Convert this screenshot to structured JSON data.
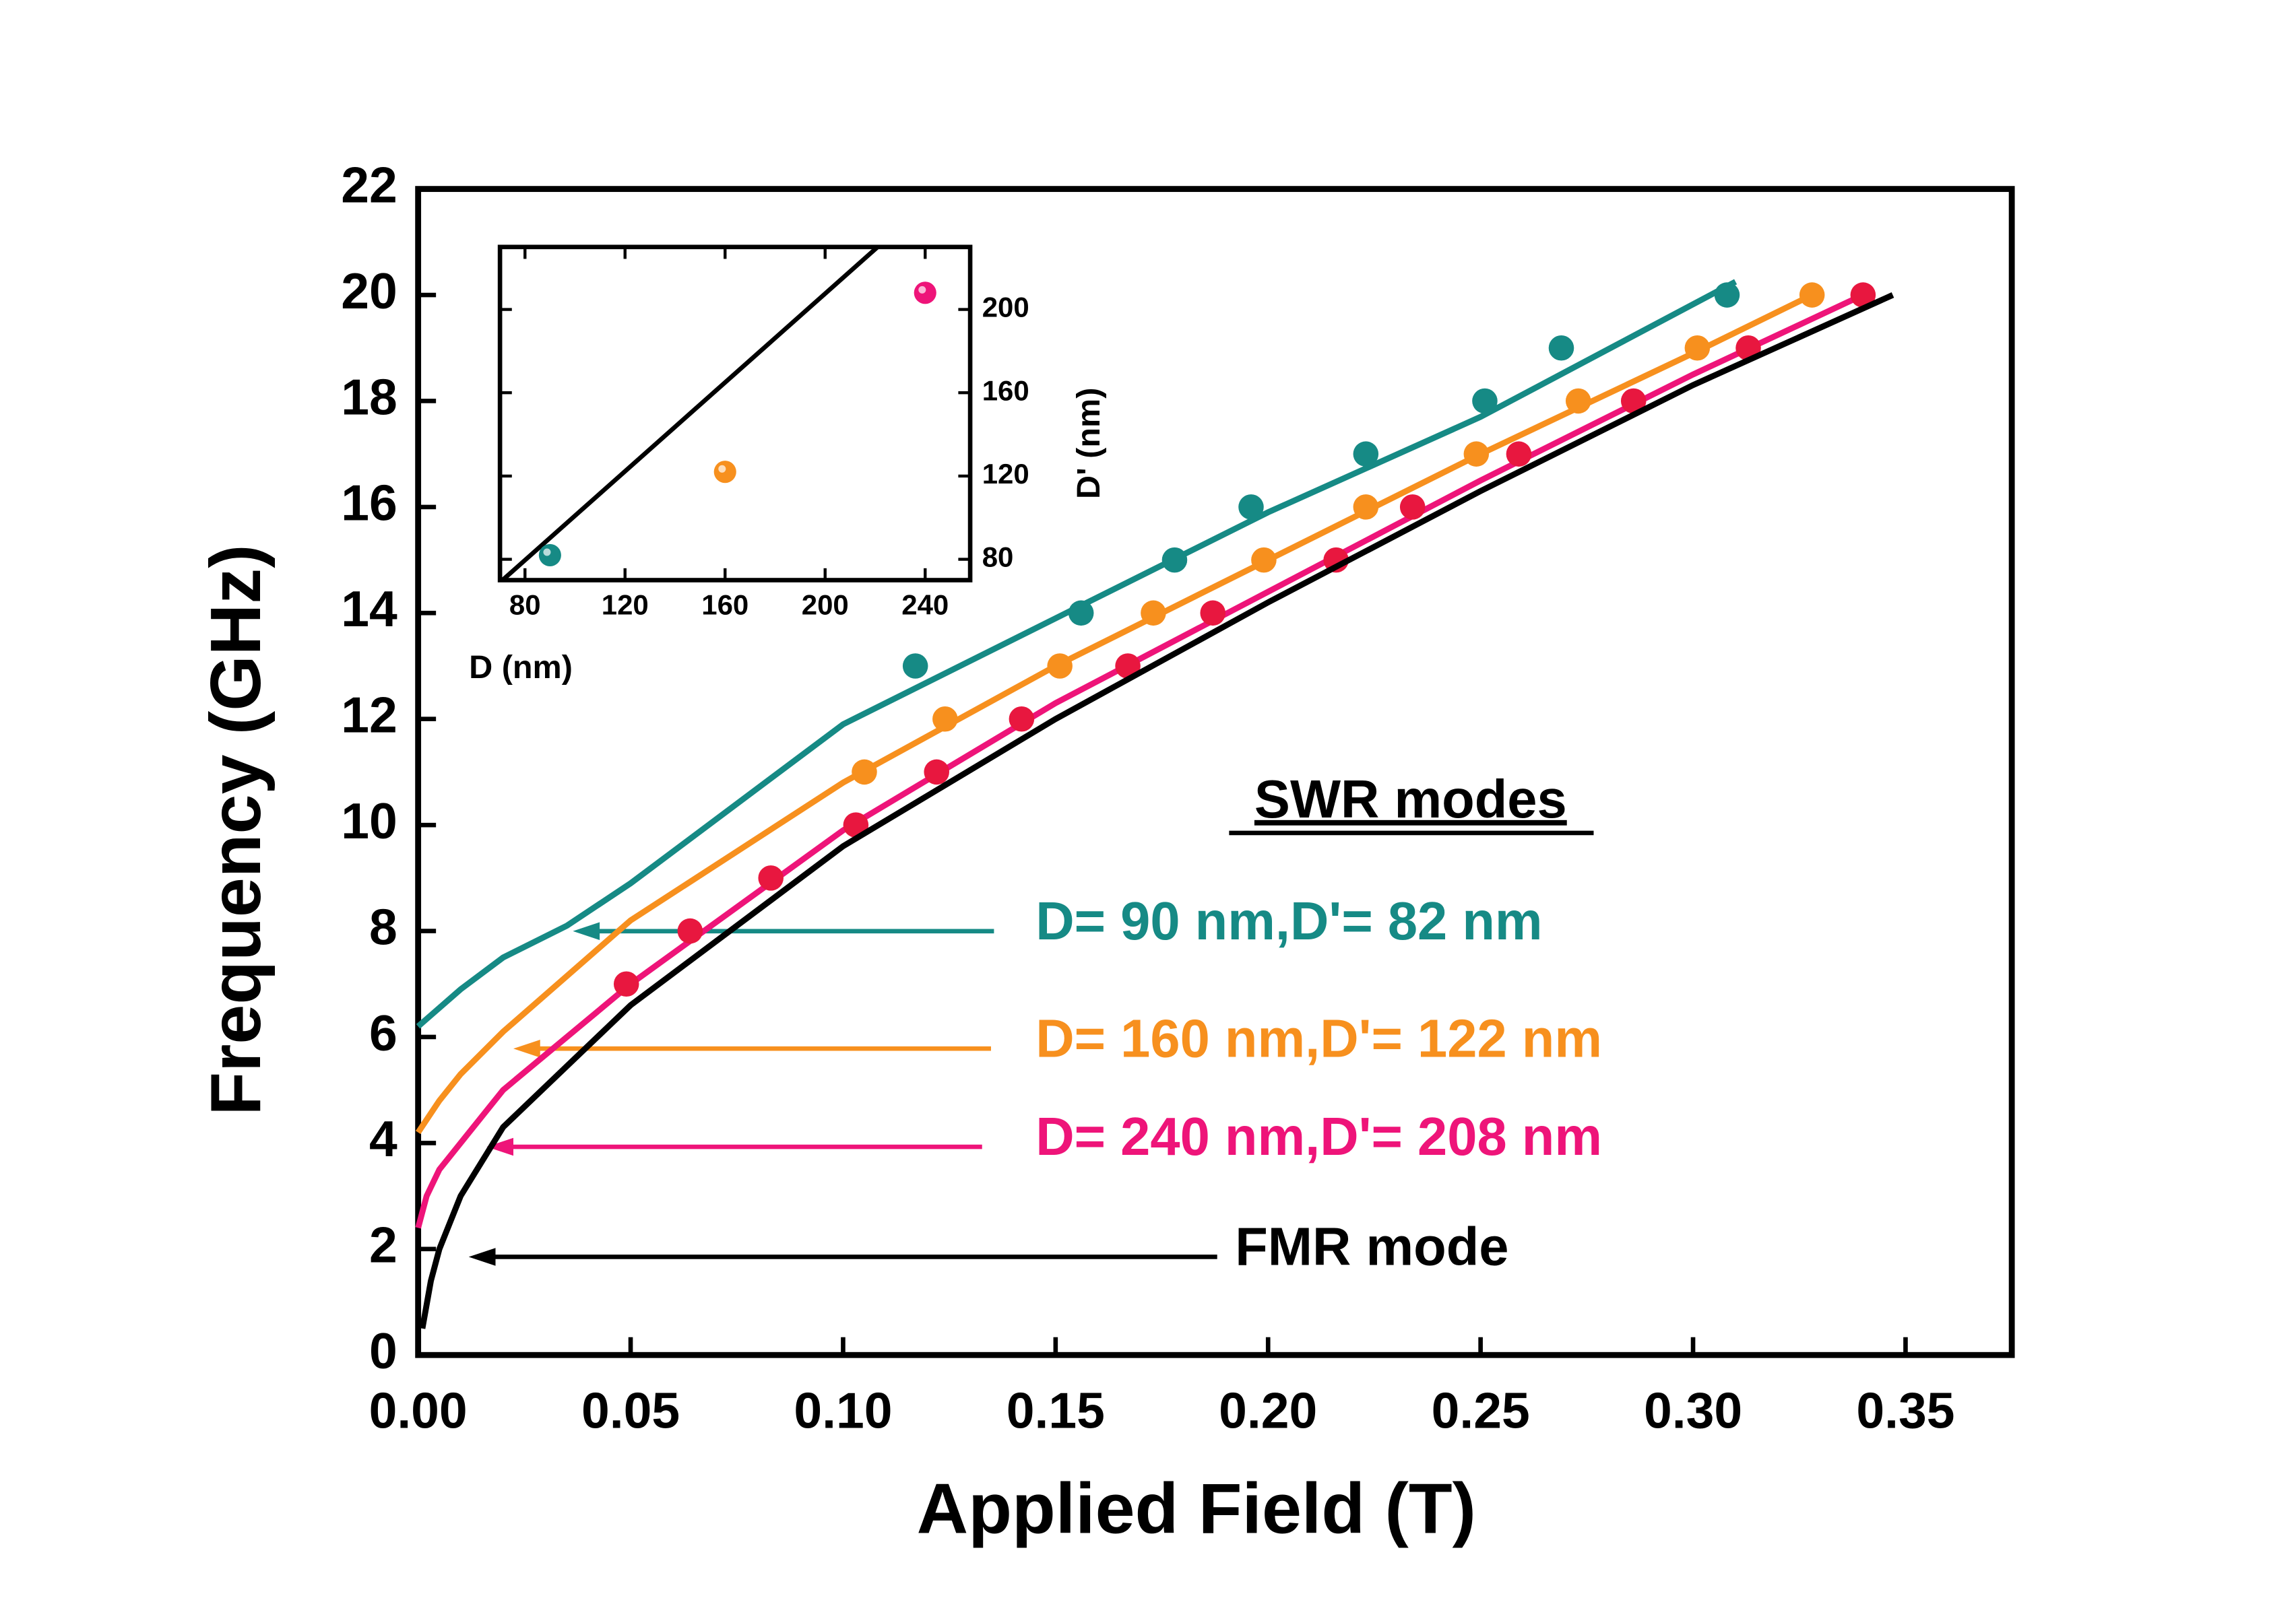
{
  "chart_data": [
    {
      "type": "line",
      "xlabel": "Applied Field (T)",
      "ylabel": "Frequency (GHz)",
      "legend_title": "SWR modes",
      "xlim": [
        0,
        0.375
      ],
      "ylim": [
        0,
        22
      ],
      "xticks": [
        {
          "value": 0,
          "label": "0.00"
        },
        0.05,
        {
          "value": 0.1,
          "label": "0.10"
        },
        0.15,
        {
          "value": 0.2,
          "label": "0.20"
        },
        0.25,
        {
          "value": 0.3,
          "label": "0.30"
        },
        0.35
      ],
      "yticks": [
        0,
        2,
        4,
        6,
        8,
        10,
        12,
        14,
        16,
        18,
        20,
        22
      ],
      "series": [
        {
          "name": "D= 90 nm,D'= 82 nm",
          "color": "#168a85",
          "marker_color": "#168a85",
          "x": [
            0,
            0.01,
            0.02,
            0.035,
            0.05,
            0.1,
            0.15,
            0.2,
            0.25,
            0.31
          ],
          "values": [
            6.2,
            6.9,
            7.5,
            8.1,
            8.9,
            11.9,
            13.9,
            15.9,
            17.7,
            20.25
          ],
          "marker_x": [
            0.117,
            0.156,
            0.178,
            0.196,
            0.223,
            0.251,
            0.269,
            0.308
          ],
          "marker_values": [
            13,
            14,
            15,
            16,
            17,
            18,
            19,
            20
          ]
        },
        {
          "name": "D= 160 nm,D'= 122 nm",
          "color": "#f7901e",
          "marker_color": "#f7901e",
          "x": [
            0,
            0.005,
            0.01,
            0.02,
            0.05,
            0.1,
            0.15,
            0.2,
            0.25,
            0.3,
            0.328
          ],
          "values": [
            4.2,
            4.8,
            5.3,
            6.1,
            8.2,
            10.8,
            13,
            15,
            17,
            18.9,
            20
          ],
          "marker_x": [
            0.105,
            0.124,
            0.151,
            0.173,
            0.199,
            0.223,
            0.249,
            0.273,
            0.301,
            0.328
          ],
          "marker_values": [
            11,
            12,
            13,
            14,
            15,
            16,
            17,
            18,
            19,
            20
          ]
        },
        {
          "name": "D= 240 nm,D'= 208 nm",
          "color": "#ee1479",
          "marker_color": "#e8173f",
          "x": [
            0,
            0.002,
            0.005,
            0.01,
            0.02,
            0.05,
            0.1,
            0.15,
            0.2,
            0.25,
            0.3,
            0.34
          ],
          "values": [
            2.4,
            3,
            3.5,
            4,
            5,
            7,
            9.9,
            12.3,
            14.4,
            16.5,
            18.5,
            20
          ],
          "marker_x": [
            0.049,
            0.064,
            0.083,
            0.103,
            0.122,
            0.142,
            0.167,
            0.187,
            0.216,
            0.234,
            0.259,
            0.286,
            0.313,
            0.34
          ],
          "marker_values": [
            7,
            8,
            9,
            10,
            11,
            12,
            13,
            14,
            15,
            16,
            17,
            18,
            19,
            20
          ]
        },
        {
          "name": "FMR mode",
          "color": "#000000",
          "x": [
            0.001,
            0.003,
            0.005,
            0.01,
            0.02,
            0.05,
            0.1,
            0.15,
            0.2,
            0.25,
            0.3,
            0.347
          ],
          "values": [
            0.5,
            1.4,
            2,
            3,
            4.3,
            6.6,
            9.6,
            12,
            14.2,
            16.3,
            18.3,
            20
          ]
        }
      ]
    },
    {
      "type": "scatter",
      "xlabel": "D (nm)",
      "ylabel": "D' (nm)",
      "yaxis_side": "right",
      "xlim": [
        70,
        258
      ],
      "ylim": [
        70,
        230
      ],
      "xticks": [
        80,
        120,
        160,
        200,
        240
      ],
      "yticks": [
        80,
        120,
        160,
        200
      ],
      "x": [
        90,
        160,
        240
      ],
      "values": [
        82,
        122,
        208
      ],
      "colors": [
        "#168a85",
        "#f7901e",
        "#ee1479"
      ],
      "line": {
        "color": "#000000",
        "x": [
          71,
          221
        ],
        "values": [
          70,
          230
        ]
      }
    }
  ]
}
